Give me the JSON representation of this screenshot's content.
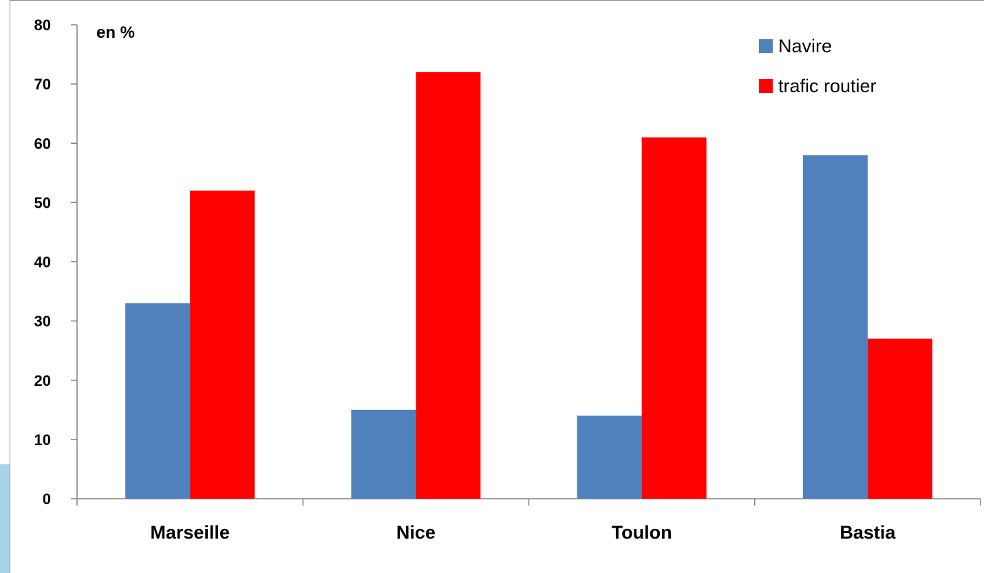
{
  "chart_data": {
    "type": "bar",
    "title": "",
    "unit_label": "en %",
    "xlabel": "",
    "ylabel": "",
    "categories": [
      "Marseille",
      "Nice",
      "Toulon",
      "Bastia"
    ],
    "series": [
      {
        "name": "Navire",
        "values": [
          33,
          15,
          14,
          58
        ],
        "color": "#4f81bd"
      },
      {
        "name": "trafic routier",
        "values": [
          52,
          72,
          61,
          27
        ],
        "color": "#ff0000"
      }
    ],
    "ylim": [
      0,
      80
    ],
    "yticks": [
      "0",
      "10",
      "20",
      "30",
      "40",
      "50",
      "60",
      "70",
      "80"
    ],
    "grid": false,
    "legend_position": "top-right"
  }
}
